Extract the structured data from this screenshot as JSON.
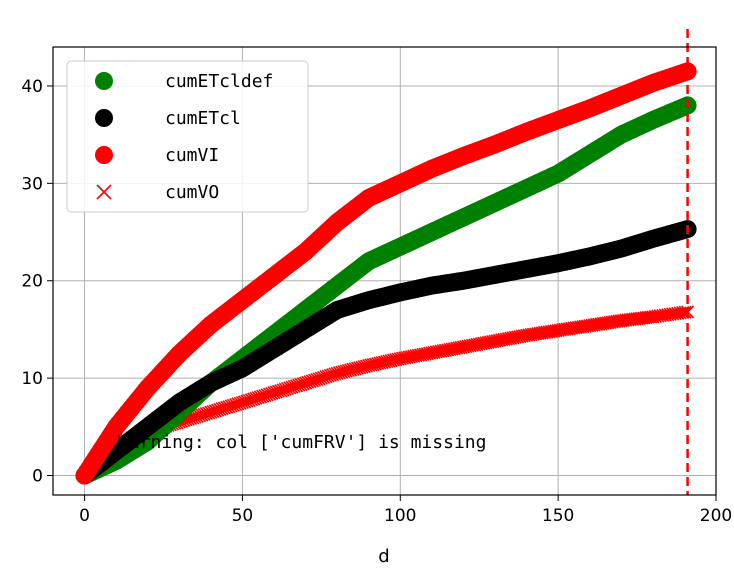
{
  "chart_data": {
    "type": "line",
    "title": "",
    "xlabel": "d",
    "ylabel": "",
    "xlim": [
      -10,
      200
    ],
    "ylim": [
      -2,
      44
    ],
    "xticks": [
      0,
      50,
      100,
      150,
      200
    ],
    "yticks": [
      0,
      10,
      20,
      30,
      40
    ],
    "grid": true,
    "legend_position": "top-left",
    "vline": {
      "x": 191,
      "color": "#ff0000",
      "style": "dashed"
    },
    "annotation": "Warning: col ['cumFRV'] is missing",
    "x": [
      0,
      10,
      20,
      30,
      40,
      50,
      60,
      70,
      80,
      90,
      100,
      110,
      120,
      130,
      140,
      150,
      160,
      170,
      180,
      191
    ],
    "series": [
      {
        "name": "cumETcldef",
        "color": "#008000",
        "marker": "circle",
        "values": [
          0,
          1.5,
          3.5,
          6.5,
          9.5,
          12,
          14.5,
          17,
          19.5,
          22,
          23.5,
          25,
          26.5,
          28,
          29.5,
          31,
          33,
          35,
          36.5,
          38
        ]
      },
      {
        "name": "cumETcl",
        "color": "#000000",
        "marker": "circle",
        "values": [
          0,
          2.5,
          5,
          7.5,
          9.5,
          11,
          13,
          15,
          17,
          18,
          18.8,
          19.5,
          20,
          20.6,
          21.2,
          21.8,
          22.5,
          23.3,
          24.3,
          25.3
        ]
      },
      {
        "name": "cumVI",
        "color": "#ff0000",
        "marker": "circle",
        "values": [
          0,
          5,
          9,
          12.5,
          15.5,
          18,
          20.5,
          23,
          26,
          28.5,
          30,
          31.5,
          32.8,
          34,
          35.3,
          36.5,
          37.7,
          39,
          40.3,
          41.5
        ]
      },
      {
        "name": "cumVO",
        "color": "#ff0000",
        "marker": "x",
        "values": [
          0,
          3,
          4.5,
          5.5,
          6.5,
          7.5,
          8.5,
          9.5,
          10.5,
          11.3,
          12,
          12.6,
          13.2,
          13.8,
          14.4,
          14.9,
          15.4,
          15.9,
          16.3,
          16.8
        ]
      }
    ]
  }
}
